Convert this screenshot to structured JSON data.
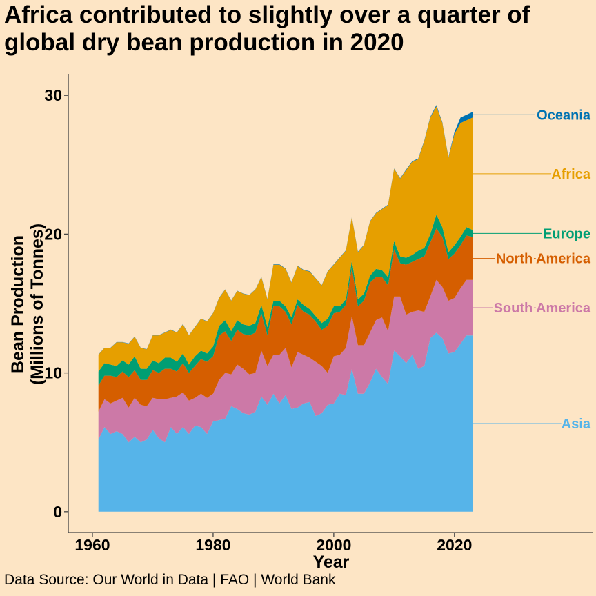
{
  "chart_data": {
    "type": "area",
    "stacked": true,
    "title": "Africa contributed to slightly over a quarter of global dry bean production in 2020",
    "xlabel": "Year",
    "ylabel": "Bean Production",
    "ylabel_line2": "(Millions of Tonnes)",
    "source": "Data Source: Our World in Data | FAO | World Bank",
    "xlim": [
      1956,
      2043
    ],
    "ylim": [
      -1.5,
      31.5
    ],
    "xticks": [
      1960,
      1980,
      2000,
      2020
    ],
    "yticks": [
      0,
      10,
      20,
      30
    ],
    "legend": "direct labels at right",
    "x": [
      1961,
      1962,
      1963,
      1964,
      1965,
      1966,
      1967,
      1968,
      1969,
      1970,
      1971,
      1972,
      1973,
      1974,
      1975,
      1976,
      1977,
      1978,
      1979,
      1980,
      1981,
      1982,
      1983,
      1984,
      1985,
      1986,
      1987,
      1988,
      1989,
      1990,
      1991,
      1992,
      1993,
      1994,
      1995,
      1996,
      1997,
      1998,
      1999,
      2000,
      2001,
      2002,
      2003,
      2004,
      2005,
      2006,
      2007,
      2008,
      2009,
      2010,
      2011,
      2012,
      2013,
      2014,
      2015,
      2016,
      2017,
      2018,
      2019,
      2020,
      2021,
      2022,
      2023
    ],
    "series": [
      {
        "name": "Asia",
        "color": "#56b4e9",
        "values": [
          5.2,
          6.1,
          5.6,
          5.8,
          5.6,
          5.0,
          5.4,
          5.0,
          5.2,
          5.9,
          5.3,
          5.0,
          6.1,
          5.6,
          6.1,
          5.6,
          6.2,
          6.1,
          5.6,
          6.5,
          6.6,
          6.7,
          7.6,
          7.4,
          7.1,
          7.0,
          7.2,
          8.3,
          7.7,
          8.5,
          7.8,
          8.4,
          7.4,
          7.5,
          7.8,
          7.9,
          6.9,
          7.1,
          7.7,
          7.8,
          8.5,
          8.4,
          10.3,
          8.5,
          8.5,
          9.3,
          10.3,
          9.7,
          9.2,
          11.6,
          11.2,
          10.7,
          11.3,
          10.3,
          10.5,
          12.5,
          12.9,
          12.5,
          11.4,
          11.5,
          12.1,
          12.7,
          12.7
        ]
      },
      {
        "name": "South America",
        "color": "#cc79a7",
        "values": [
          2.0,
          2.0,
          2.2,
          2.2,
          2.6,
          2.5,
          2.8,
          2.7,
          2.4,
          2.3,
          2.8,
          3.1,
          2.1,
          2.7,
          2.5,
          2.4,
          2.0,
          2.4,
          2.6,
          2.0,
          2.9,
          3.3,
          2.3,
          3.2,
          3.2,
          2.9,
          2.8,
          3.3,
          2.8,
          2.8,
          3.5,
          3.4,
          3.0,
          4.0,
          3.5,
          3.2,
          3.9,
          3.4,
          2.3,
          3.4,
          2.8,
          3.4,
          3.8,
          3.5,
          3.5,
          3.6,
          3.5,
          4.3,
          3.8,
          3.9,
          4.3,
          3.5,
          3.1,
          4.2,
          3.9,
          3.0,
          3.8,
          3.7,
          3.8,
          3.9,
          4.0,
          4.0,
          4.0
        ]
      },
      {
        "name": "North America",
        "color": "#d55e00",
        "values": [
          1.9,
          1.7,
          2.0,
          1.7,
          1.9,
          2.2,
          2.0,
          1.8,
          1.9,
          2.0,
          1.9,
          2.2,
          2.1,
          1.8,
          2.1,
          2.0,
          2.3,
          2.5,
          2.6,
          2.7,
          3.2,
          3.0,
          2.4,
          2.5,
          2.5,
          2.8,
          2.9,
          2.7,
          2.2,
          3.5,
          3.5,
          2.6,
          3.1,
          3.4,
          3.1,
          3.1,
          2.9,
          2.6,
          3.4,
          3.1,
          3.1,
          3.1,
          3.5,
          2.8,
          3.2,
          3.6,
          3.1,
          2.9,
          3.3,
          3.4,
          2.4,
          3.6,
          3.6,
          3.7,
          4.0,
          3.9,
          3.7,
          3.6,
          3.0,
          3.2,
          3.1,
          3.2,
          3.1
        ]
      },
      {
        "name": "Europe",
        "color": "#009e73",
        "values": [
          1.0,
          0.9,
          0.8,
          0.8,
          0.8,
          0.9,
          1.0,
          0.8,
          0.8,
          0.7,
          0.7,
          0.8,
          0.8,
          0.7,
          0.7,
          0.6,
          0.7,
          0.6,
          0.6,
          0.7,
          0.7,
          0.8,
          0.7,
          0.7,
          0.7,
          0.7,
          0.7,
          0.6,
          0.6,
          0.4,
          0.4,
          0.4,
          0.5,
          0.4,
          0.5,
          0.4,
          0.4,
          0.5,
          0.5,
          0.5,
          0.4,
          0.4,
          0.5,
          0.5,
          0.5,
          0.5,
          0.6,
          0.5,
          0.6,
          0.6,
          0.5,
          0.5,
          0.5,
          0.6,
          0.6,
          0.6,
          1.0,
          0.7,
          0.5,
          0.6,
          0.6,
          0.6,
          0.5
        ]
      },
      {
        "name": "Africa",
        "color": "#e69f00",
        "values": [
          1.2,
          1.1,
          1.2,
          1.7,
          1.3,
          1.5,
          1.4,
          1.5,
          1.4,
          1.8,
          2.0,
          1.8,
          2.0,
          2.1,
          2.1,
          2.1,
          2.1,
          2.3,
          2.3,
          2.4,
          2.0,
          2.2,
          2.2,
          2.1,
          2.2,
          2.2,
          2.4,
          2.0,
          2.0,
          2.6,
          2.6,
          2.7,
          2.5,
          2.4,
          2.5,
          2.7,
          2.7,
          2.7,
          3.4,
          3.0,
          3.5,
          3.5,
          3.1,
          3.4,
          3.5,
          3.9,
          4.0,
          4.4,
          5.2,
          5.2,
          5.6,
          6.3,
          6.7,
          6.6,
          7.7,
          8.4,
          7.8,
          7.5,
          6.8,
          8.0,
          8.2,
          7.7,
          8.1
        ]
      },
      {
        "name": "Oceania",
        "color": "#0072b2",
        "values": [
          0.02,
          0.02,
          0.02,
          0.02,
          0.02,
          0.02,
          0.02,
          0.02,
          0.02,
          0.02,
          0.02,
          0.02,
          0.02,
          0.02,
          0.02,
          0.02,
          0.02,
          0.02,
          0.02,
          0.02,
          0.02,
          0.02,
          0.02,
          0.02,
          0.02,
          0.02,
          0.02,
          0.03,
          0.03,
          0.03,
          0.03,
          0.03,
          0.03,
          0.03,
          0.03,
          0.03,
          0.03,
          0.03,
          0.03,
          0.03,
          0.03,
          0.03,
          0.03,
          0.03,
          0.03,
          0.03,
          0.03,
          0.03,
          0.03,
          0.03,
          0.03,
          0.05,
          0.05,
          0.05,
          0.05,
          0.05,
          0.1,
          0.05,
          0.05,
          0.15,
          0.4,
          0.4,
          0.4
        ]
      }
    ]
  }
}
